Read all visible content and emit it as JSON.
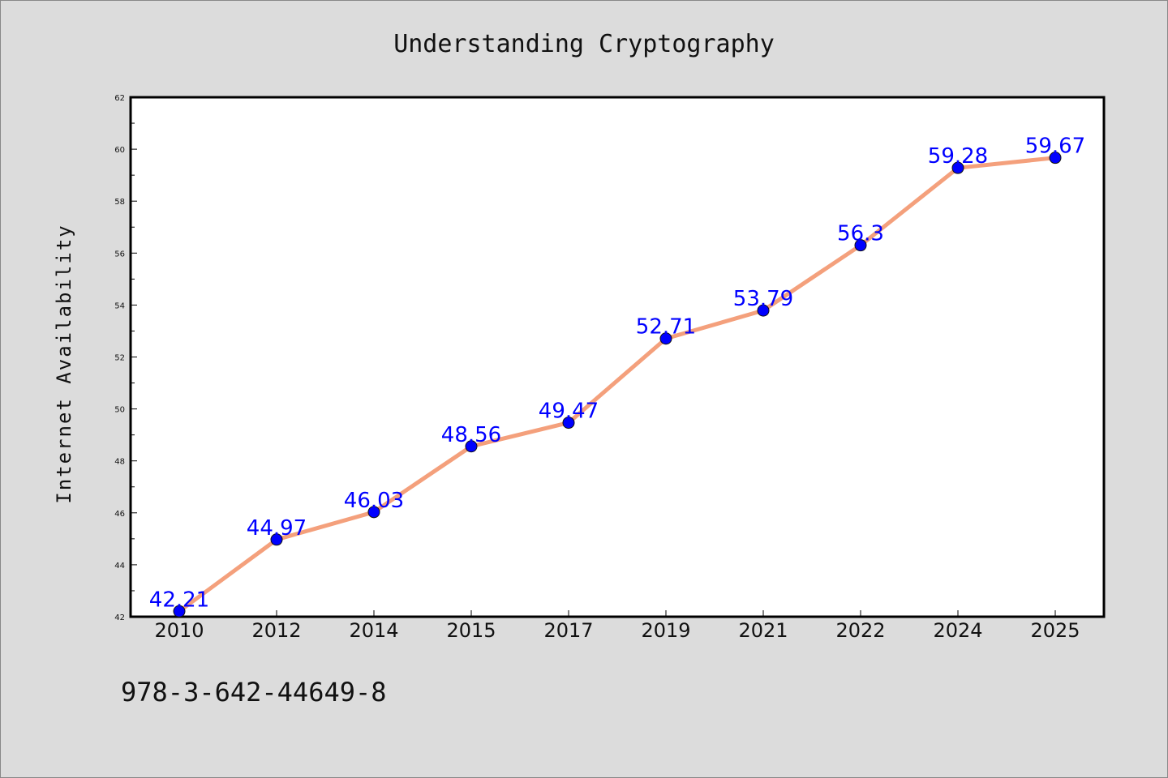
{
  "chart_data": {
    "type": "line",
    "title": "Understanding Cryptography",
    "xlabel": "",
    "ylabel": "Internet Availability",
    "categories": [
      "2010",
      "2012",
      "2014",
      "2015",
      "2017",
      "2019",
      "2021",
      "2022",
      "2024",
      "2025"
    ],
    "series": [
      {
        "values": [
          42.21,
          44.97,
          46.03,
          48.56,
          49.47,
          52.71,
          53.79,
          56.3,
          59.28,
          59.67
        ],
        "line_color": "#f4a07c",
        "marker_color": "#0000ff"
      }
    ],
    "data_labels": [
      "42.21",
      "44.97",
      "46.03",
      "48.56",
      "49.47",
      "52.71",
      "53.79",
      "56.3",
      "59.28",
      "59.67"
    ],
    "ylim": [
      42,
      62
    ],
    "yticks": [
      "42",
      "44",
      "46",
      "48",
      "50",
      "52",
      "54",
      "56",
      "58",
      "60",
      "62"
    ],
    "grid": false,
    "legend": "none"
  },
  "footer": {
    "isbn": "978-3-642-44649-8"
  }
}
